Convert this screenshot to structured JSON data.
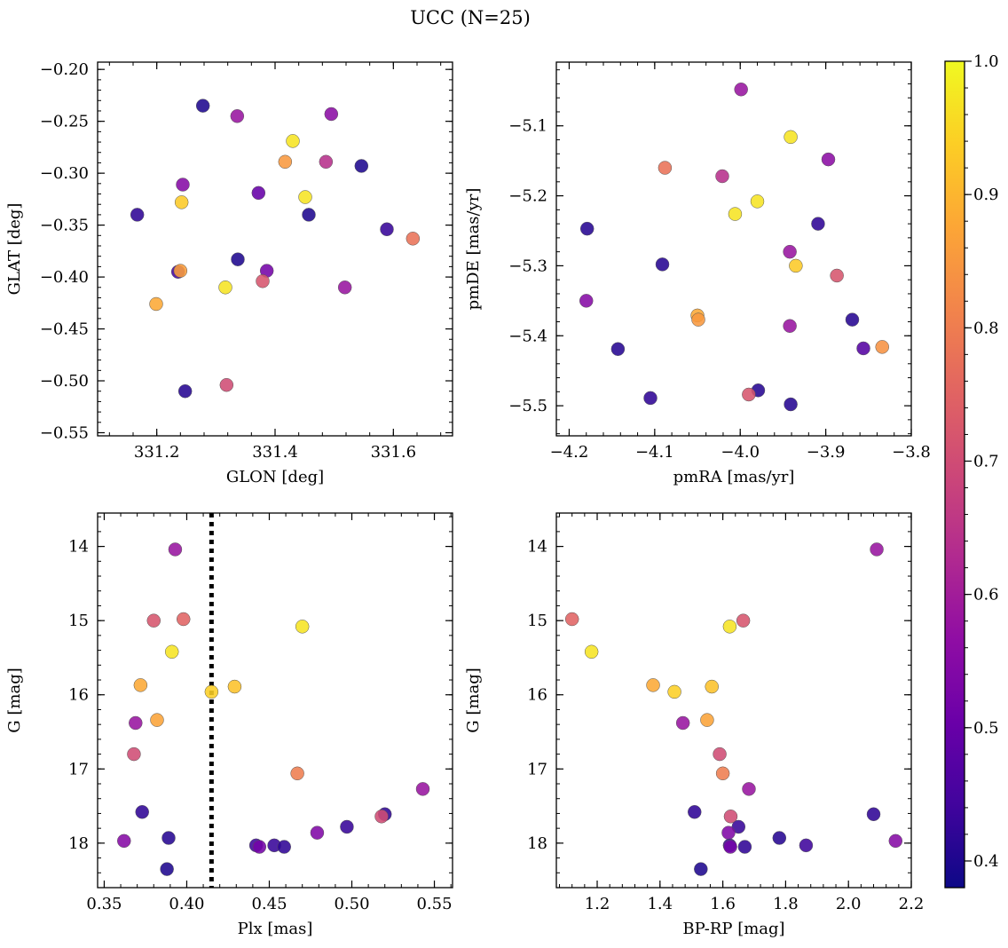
{
  "suptitle": "UCC (N=25)",
  "colorbar": {
    "colormap": "plasma",
    "range": [
      0.38,
      1.0
    ],
    "ticks": [
      0.4,
      0.5,
      0.6,
      0.7,
      0.8,
      0.9,
      1.0
    ],
    "tick_labels": [
      "0.4",
      "0.5",
      "0.6",
      "0.7",
      "0.8",
      "0.9",
      "1.0"
    ]
  },
  "chart_data": [
    {
      "type": "scatter",
      "id": "glon-glat",
      "xlabel": "GLON [deg]",
      "ylabel": "GLAT [deg]",
      "xlim": [
        331.1,
        331.7
      ],
      "ylim": [
        -0.553,
        -0.193
      ],
      "y_inverted": false,
      "xticks": [
        331.2,
        331.4,
        331.6
      ],
      "xtick_labels": [
        "331.2",
        "331.4",
        "331.6"
      ],
      "yticks": [
        -0.2,
        -0.25,
        -0.3,
        -0.35,
        -0.4,
        -0.45,
        -0.5,
        -0.55
      ],
      "ytick_labels": [
        "−0.20",
        "−0.25",
        "−0.30",
        "−0.35",
        "−0.40",
        "−0.45",
        "−0.50",
        "−0.55"
      ],
      "points": [
        {
          "x": 331.278,
          "y": -0.235,
          "c": 0.4
        },
        {
          "x": 331.336,
          "y": -0.245,
          "c": 0.58
        },
        {
          "x": 331.495,
          "y": -0.243,
          "c": 0.56
        },
        {
          "x": 331.43,
          "y": -0.269,
          "c": 0.97
        },
        {
          "x": 331.417,
          "y": -0.289,
          "c": 0.85
        },
        {
          "x": 331.486,
          "y": -0.289,
          "c": 0.64
        },
        {
          "x": 331.546,
          "y": -0.293,
          "c": 0.4
        },
        {
          "x": 331.244,
          "y": -0.311,
          "c": 0.55
        },
        {
          "x": 331.372,
          "y": -0.319,
          "c": 0.5
        },
        {
          "x": 331.451,
          "y": -0.323,
          "c": 0.97
        },
        {
          "x": 331.242,
          "y": -0.328,
          "c": 0.93
        },
        {
          "x": 331.167,
          "y": -0.34,
          "c": 0.42
        },
        {
          "x": 331.457,
          "y": -0.34,
          "c": 0.4
        },
        {
          "x": 331.589,
          "y": -0.354,
          "c": 0.43
        },
        {
          "x": 331.633,
          "y": -0.363,
          "c": 0.78
        },
        {
          "x": 331.337,
          "y": -0.383,
          "c": 0.4
        },
        {
          "x": 331.236,
          "y": -0.395,
          "c": 0.45
        },
        {
          "x": 331.24,
          "y": -0.394,
          "c": 0.86
        },
        {
          "x": 331.386,
          "y": -0.394,
          "c": 0.52
        },
        {
          "x": 331.379,
          "y": -0.404,
          "c": 0.72
        },
        {
          "x": 331.316,
          "y": -0.41,
          "c": 0.97
        },
        {
          "x": 331.518,
          "y": -0.41,
          "c": 0.58
        },
        {
          "x": 331.199,
          "y": -0.426,
          "c": 0.88
        },
        {
          "x": 331.318,
          "y": -0.504,
          "c": 0.7
        },
        {
          "x": 331.248,
          "y": -0.51,
          "c": 0.41
        }
      ]
    },
    {
      "type": "scatter",
      "id": "pmra-pmde",
      "xlabel": "pmRA [mas/yr]",
      "ylabel": "pmDE [mas/yr]",
      "xlim": [
        -4.215,
        -3.8
      ],
      "ylim": [
        -5.543,
        -5.009
      ],
      "y_inverted": false,
      "xticks": [
        -4.2,
        -4.1,
        -4.0,
        -3.9,
        -3.8
      ],
      "xtick_labels": [
        "−4.2",
        "−4.1",
        "−4.0",
        "−3.9",
        "−3.8"
      ],
      "yticks": [
        -5.1,
        -5.2,
        -5.3,
        -5.4,
        -5.5
      ],
      "ytick_labels": [
        "−5.1",
        "−5.2",
        "−5.3",
        "−5.4",
        "−5.5"
      ],
      "points": [
        {
          "x": -3.999,
          "y": -5.048,
          "c": 0.58
        },
        {
          "x": -3.941,
          "y": -5.116,
          "c": 0.97
        },
        {
          "x": -3.897,
          "y": -5.148,
          "c": 0.56
        },
        {
          "x": -4.088,
          "y": -5.16,
          "c": 0.78
        },
        {
          "x": -4.021,
          "y": -5.172,
          "c": 0.64
        },
        {
          "x": -3.98,
          "y": -5.208,
          "c": 0.97
        },
        {
          "x": -4.006,
          "y": -5.226,
          "c": 0.97
        },
        {
          "x": -3.909,
          "y": -5.24,
          "c": 0.42
        },
        {
          "x": -4.179,
          "y": -5.247,
          "c": 0.41
        },
        {
          "x": -3.942,
          "y": -5.28,
          "c": 0.58
        },
        {
          "x": -3.935,
          "y": -5.3,
          "c": 0.93
        },
        {
          "x": -4.091,
          "y": -5.298,
          "c": 0.41
        },
        {
          "x": -3.887,
          "y": -5.314,
          "c": 0.72
        },
        {
          "x": -4.18,
          "y": -5.35,
          "c": 0.55
        },
        {
          "x": -4.05,
          "y": -5.371,
          "c": 0.88
        },
        {
          "x": -4.049,
          "y": -5.377,
          "c": 0.85
        },
        {
          "x": -3.869,
          "y": -5.377,
          "c": 0.41
        },
        {
          "x": -3.942,
          "y": -5.386,
          "c": 0.58
        },
        {
          "x": -3.856,
          "y": -5.418,
          "c": 0.47
        },
        {
          "x": -3.834,
          "y": -5.416,
          "c": 0.84
        },
        {
          "x": -4.143,
          "y": -5.419,
          "c": 0.41
        },
        {
          "x": -3.979,
          "y": -5.478,
          "c": 0.41
        },
        {
          "x": -3.99,
          "y": -5.484,
          "c": 0.72
        },
        {
          "x": -4.105,
          "y": -5.489,
          "c": 0.42
        },
        {
          "x": -3.941,
          "y": -5.498,
          "c": 0.41
        }
      ]
    },
    {
      "type": "scatter",
      "id": "plx-g",
      "xlabel": "Plx [mas]",
      "ylabel": "G [mag]",
      "xlim": [
        0.346,
        0.561
      ],
      "ylim": [
        18.6,
        13.55
      ],
      "y_inverted": true,
      "xticks": [
        0.35,
        0.4,
        0.45,
        0.5,
        0.55
      ],
      "xtick_labels": [
        "0.35",
        "0.40",
        "0.45",
        "0.50",
        "0.55"
      ],
      "yticks": [
        14,
        15,
        16,
        17,
        18
      ],
      "ytick_labels": [
        "14",
        "15",
        "16",
        "17",
        "18"
      ],
      "vline": {
        "x": 0.415,
        "style": "dotted",
        "color": "#000000"
      },
      "points": [
        {
          "x": 0.393,
          "y": 14.04,
          "c": 0.58
        },
        {
          "x": 0.38,
          "y": 15.0,
          "c": 0.72
        },
        {
          "x": 0.398,
          "y": 14.98,
          "c": 0.75
        },
        {
          "x": 0.47,
          "y": 15.08,
          "c": 0.97
        },
        {
          "x": 0.391,
          "y": 15.42,
          "c": 0.97
        },
        {
          "x": 0.372,
          "y": 15.87,
          "c": 0.88
        },
        {
          "x": 0.429,
          "y": 15.89,
          "c": 0.92
        },
        {
          "x": 0.415,
          "y": 15.96,
          "c": 0.94
        },
        {
          "x": 0.382,
          "y": 16.34,
          "c": 0.87
        },
        {
          "x": 0.369,
          "y": 16.38,
          "c": 0.58
        },
        {
          "x": 0.368,
          "y": 16.8,
          "c": 0.7
        },
        {
          "x": 0.467,
          "y": 17.06,
          "c": 0.8
        },
        {
          "x": 0.543,
          "y": 17.27,
          "c": 0.58
        },
        {
          "x": 0.373,
          "y": 17.58,
          "c": 0.42
        },
        {
          "x": 0.52,
          "y": 17.61,
          "c": 0.42
        },
        {
          "x": 0.518,
          "y": 17.64,
          "c": 0.7
        },
        {
          "x": 0.497,
          "y": 17.78,
          "c": 0.43
        },
        {
          "x": 0.479,
          "y": 17.86,
          "c": 0.54
        },
        {
          "x": 0.389,
          "y": 17.93,
          "c": 0.41
        },
        {
          "x": 0.362,
          "y": 17.97,
          "c": 0.55
        },
        {
          "x": 0.442,
          "y": 18.03,
          "c": 0.44
        },
        {
          "x": 0.453,
          "y": 18.03,
          "c": 0.43
        },
        {
          "x": 0.444,
          "y": 18.05,
          "c": 0.52
        },
        {
          "x": 0.459,
          "y": 18.05,
          "c": 0.42
        },
        {
          "x": 0.388,
          "y": 18.35,
          "c": 0.4
        }
      ]
    },
    {
      "type": "scatter",
      "id": "bprp-g",
      "xlabel": "BP-RP [mag]",
      "ylabel": "G [mag]",
      "xlim": [
        1.07,
        2.2
      ],
      "ylim": [
        18.6,
        13.55
      ],
      "y_inverted": true,
      "xticks": [
        1.2,
        1.4,
        1.6,
        1.8,
        2.0,
        2.2
      ],
      "xtick_labels": [
        "1.2",
        "1.4",
        "1.6",
        "1.8",
        "2.0",
        "2.2"
      ],
      "yticks": [
        14,
        15,
        16,
        17,
        18
      ],
      "ytick_labels": [
        "14",
        "15",
        "16",
        "17",
        "18"
      ],
      "points": [
        {
          "x": 2.09,
          "y": 14.04,
          "c": 0.58
        },
        {
          "x": 1.12,
          "y": 14.98,
          "c": 0.75
        },
        {
          "x": 1.665,
          "y": 15.0,
          "c": 0.72
        },
        {
          "x": 1.622,
          "y": 15.08,
          "c": 0.97
        },
        {
          "x": 1.182,
          "y": 15.42,
          "c": 0.97
        },
        {
          "x": 1.378,
          "y": 15.87,
          "c": 0.88
        },
        {
          "x": 1.565,
          "y": 15.89,
          "c": 0.92
        },
        {
          "x": 1.446,
          "y": 15.96,
          "c": 0.94
        },
        {
          "x": 1.55,
          "y": 16.34,
          "c": 0.87
        },
        {
          "x": 1.473,
          "y": 16.38,
          "c": 0.58
        },
        {
          "x": 1.59,
          "y": 16.8,
          "c": 0.7
        },
        {
          "x": 1.6,
          "y": 17.06,
          "c": 0.8
        },
        {
          "x": 1.683,
          "y": 17.27,
          "c": 0.58
        },
        {
          "x": 1.51,
          "y": 17.58,
          "c": 0.42
        },
        {
          "x": 2.08,
          "y": 17.61,
          "c": 0.42
        },
        {
          "x": 1.625,
          "y": 17.64,
          "c": 0.7
        },
        {
          "x": 1.65,
          "y": 17.78,
          "c": 0.43
        },
        {
          "x": 1.618,
          "y": 17.86,
          "c": 0.54
        },
        {
          "x": 1.78,
          "y": 17.93,
          "c": 0.41
        },
        {
          "x": 2.15,
          "y": 17.97,
          "c": 0.55
        },
        {
          "x": 1.865,
          "y": 18.03,
          "c": 0.44
        },
        {
          "x": 1.622,
          "y": 18.03,
          "c": 0.43
        },
        {
          "x": 1.624,
          "y": 18.05,
          "c": 0.52
        },
        {
          "x": 1.67,
          "y": 18.05,
          "c": 0.42
        },
        {
          "x": 1.53,
          "y": 18.35,
          "c": 0.4
        }
      ]
    }
  ]
}
